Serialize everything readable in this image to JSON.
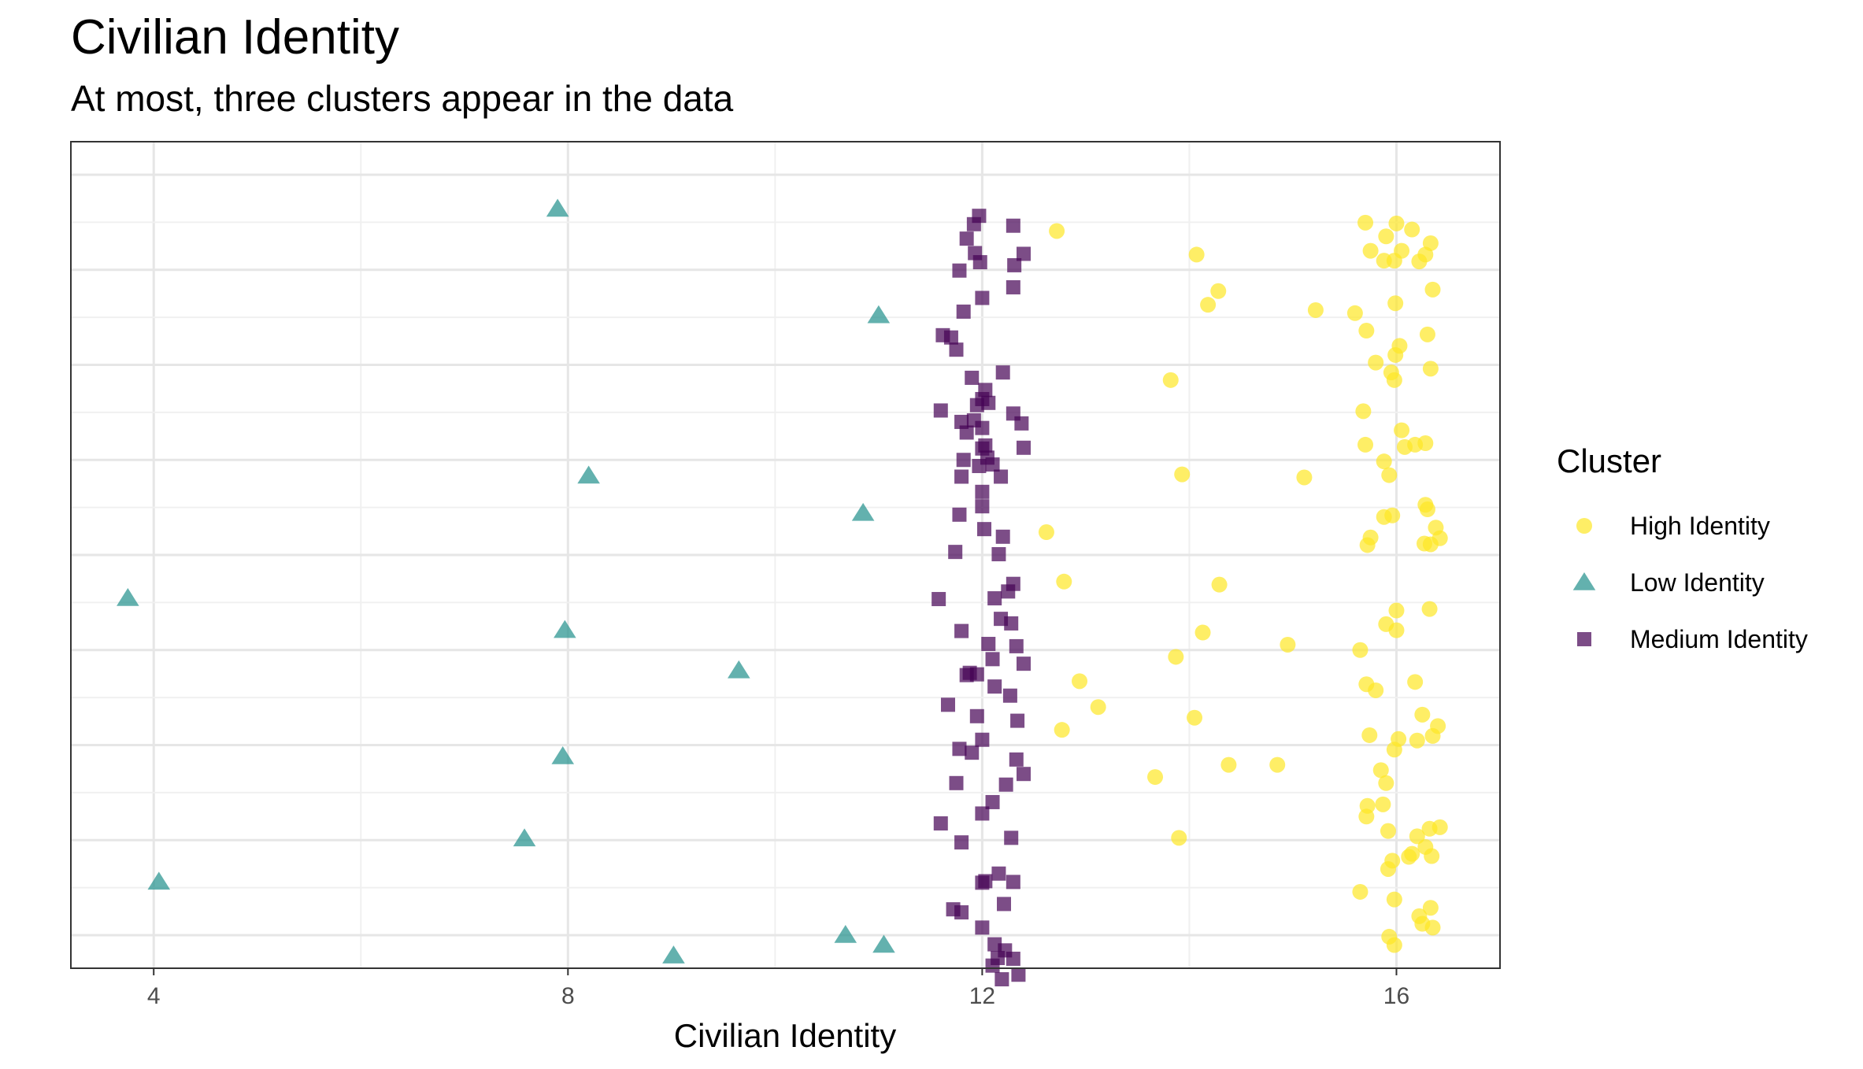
{
  "chart_data": {
    "type": "scatter",
    "title": "Civilian Identity",
    "subtitle": "At most, three clusters appear in the data",
    "xlabel": "Civilian Identity",
    "ylabel": "",
    "xlim": [
      3.2,
      17.0
    ],
    "x_ticks": [
      "4",
      "8",
      "12",
      "16"
    ],
    "grid": true,
    "legend_title": "Cluster",
    "legend_position": "right",
    "colors": {
      "High Identity": "#fde725",
      "Low Identity": "#21908c",
      "Medium Identity": "#440154"
    },
    "series": [
      {
        "name": "High Identity",
        "shape": "circle",
        "points": [
          [
            12.72,
            0.074
          ],
          [
            14.07,
            0.105
          ],
          [
            14.28,
            0.153
          ],
          [
            14.18,
            0.171
          ],
          [
            15.22,
            0.178
          ],
          [
            13.82,
            0.27
          ],
          [
            13.93,
            0.394
          ],
          [
            15.11,
            0.398
          ],
          [
            12.62,
            0.47
          ],
          [
            12.79,
            0.535
          ],
          [
            14.29,
            0.539
          ],
          [
            14.13,
            0.602
          ],
          [
            14.95,
            0.618
          ],
          [
            13.87,
            0.634
          ],
          [
            12.94,
            0.666
          ],
          [
            13.12,
            0.7
          ],
          [
            14.05,
            0.714
          ],
          [
            12.77,
            0.73
          ],
          [
            14.38,
            0.776
          ],
          [
            14.85,
            0.776
          ],
          [
            13.67,
            0.792
          ],
          [
            13.9,
            0.872
          ],
          [
            15.7,
            0.063
          ],
          [
            16.0,
            0.064
          ],
          [
            16.15,
            0.072
          ],
          [
            15.9,
            0.081
          ],
          [
            16.33,
            0.09
          ],
          [
            15.75,
            0.1
          ],
          [
            16.05,
            0.1
          ],
          [
            16.28,
            0.105
          ],
          [
            15.88,
            0.113
          ],
          [
            15.98,
            0.113
          ],
          [
            16.22,
            0.114
          ],
          [
            16.35,
            0.151
          ],
          [
            15.99,
            0.169
          ],
          [
            15.6,
            0.182
          ],
          [
            15.71,
            0.205
          ],
          [
            16.3,
            0.21
          ],
          [
            16.03,
            0.225
          ],
          [
            15.99,
            0.237
          ],
          [
            15.8,
            0.247
          ],
          [
            15.95,
            0.26
          ],
          [
            16.33,
            0.255
          ],
          [
            15.98,
            0.27
          ],
          [
            15.68,
            0.311
          ],
          [
            16.05,
            0.336
          ],
          [
            16.18,
            0.355
          ],
          [
            16.28,
            0.353
          ],
          [
            15.7,
            0.355
          ],
          [
            16.08,
            0.358
          ],
          [
            15.88,
            0.377
          ],
          [
            15.93,
            0.395
          ],
          [
            16.28,
            0.434
          ],
          [
            16.3,
            0.44
          ],
          [
            15.88,
            0.45
          ],
          [
            15.96,
            0.448
          ],
          [
            16.38,
            0.464
          ],
          [
            15.75,
            0.477
          ],
          [
            15.72,
            0.487
          ],
          [
            16.42,
            0.478
          ],
          [
            16.27,
            0.485
          ],
          [
            16.33,
            0.486
          ],
          [
            16.0,
            0.573
          ],
          [
            16.32,
            0.571
          ],
          [
            15.9,
            0.591
          ],
          [
            16.0,
            0.599
          ],
          [
            15.65,
            0.625
          ],
          [
            15.71,
            0.67
          ],
          [
            16.18,
            0.667
          ],
          [
            15.8,
            0.678
          ],
          [
            16.25,
            0.71
          ],
          [
            16.4,
            0.725
          ],
          [
            15.74,
            0.737
          ],
          [
            16.02,
            0.742
          ],
          [
            16.2,
            0.744
          ],
          [
            16.35,
            0.738
          ],
          [
            15.98,
            0.756
          ],
          [
            15.85,
            0.783
          ],
          [
            15.9,
            0.8
          ],
          [
            15.72,
            0.83
          ],
          [
            15.87,
            0.828
          ],
          [
            15.71,
            0.844
          ],
          [
            16.32,
            0.86
          ],
          [
            16.2,
            0.87
          ],
          [
            15.92,
            0.863
          ],
          [
            16.42,
            0.858
          ],
          [
            16.28,
            0.884
          ],
          [
            16.15,
            0.893
          ],
          [
            16.12,
            0.897
          ],
          [
            15.96,
            0.902
          ],
          [
            16.34,
            0.896
          ],
          [
            15.92,
            0.913
          ],
          [
            15.65,
            0.943
          ],
          [
            15.98,
            0.953
          ],
          [
            16.33,
            0.964
          ],
          [
            16.22,
            0.975
          ],
          [
            16.25,
            0.985
          ],
          [
            16.35,
            0.99
          ],
          [
            15.93,
            1.002
          ],
          [
            15.98,
            1.013
          ]
        ]
      },
      {
        "name": "Low Identity",
        "shape": "triangle",
        "points": [
          [
            7.9,
            0.045
          ],
          [
            11.0,
            0.185
          ],
          [
            8.2,
            0.396
          ],
          [
            10.85,
            0.445
          ],
          [
            3.75,
            0.557
          ],
          [
            7.97,
            0.599
          ],
          [
            9.65,
            0.652
          ],
          [
            7.95,
            0.765
          ],
          [
            7.58,
            0.873
          ],
          [
            4.05,
            0.93
          ],
          [
            10.68,
            1.0
          ],
          [
            11.05,
            1.013
          ],
          [
            9.02,
            1.027
          ]
        ]
      },
      {
        "name": "Medium Identity",
        "shape": "square",
        "points": [
          [
            11.97,
            0.054
          ],
          [
            11.92,
            0.065
          ],
          [
            12.3,
            0.067
          ],
          [
            11.85,
            0.084
          ],
          [
            11.93,
            0.103
          ],
          [
            12.4,
            0.104
          ],
          [
            11.98,
            0.115
          ],
          [
            12.31,
            0.119
          ],
          [
            11.78,
            0.126
          ],
          [
            12.3,
            0.148
          ],
          [
            12.0,
            0.162
          ],
          [
            11.82,
            0.18
          ],
          [
            11.62,
            0.211
          ],
          [
            11.7,
            0.214
          ],
          [
            11.75,
            0.23
          ],
          [
            12.2,
            0.26
          ],
          [
            11.9,
            0.267
          ],
          [
            12.03,
            0.283
          ],
          [
            12.0,
            0.295
          ],
          [
            12.06,
            0.3
          ],
          [
            11.95,
            0.303
          ],
          [
            11.6,
            0.31
          ],
          [
            12.3,
            0.314
          ],
          [
            11.92,
            0.323
          ],
          [
            11.8,
            0.325
          ],
          [
            12.38,
            0.327
          ],
          [
            12.0,
            0.333
          ],
          [
            11.85,
            0.339
          ],
          [
            12.03,
            0.356
          ],
          [
            12.4,
            0.359
          ],
          [
            12.0,
            0.36
          ],
          [
            12.05,
            0.372
          ],
          [
            11.82,
            0.375
          ],
          [
            12.1,
            0.381
          ],
          [
            11.97,
            0.383
          ],
          [
            12.18,
            0.397
          ],
          [
            11.8,
            0.397
          ],
          [
            12.0,
            0.417
          ],
          [
            12.0,
            0.436
          ],
          [
            11.78,
            0.447
          ],
          [
            12.02,
            0.466
          ],
          [
            12.2,
            0.476
          ],
          [
            11.74,
            0.496
          ],
          [
            12.16,
            0.499
          ],
          [
            12.3,
            0.538
          ],
          [
            12.25,
            0.548
          ],
          [
            12.12,
            0.557
          ],
          [
            11.58,
            0.558
          ],
          [
            12.18,
            0.584
          ],
          [
            12.28,
            0.59
          ],
          [
            11.8,
            0.6
          ],
          [
            12.06,
            0.617
          ],
          [
            12.33,
            0.62
          ],
          [
            12.1,
            0.637
          ],
          [
            12.4,
            0.643
          ],
          [
            11.88,
            0.655
          ],
          [
            11.95,
            0.657
          ],
          [
            11.85,
            0.658
          ],
          [
            12.12,
            0.673
          ],
          [
            12.27,
            0.685
          ],
          [
            11.67,
            0.697
          ],
          [
            11.95,
            0.712
          ],
          [
            12.34,
            0.718
          ],
          [
            12.0,
            0.743
          ],
          [
            11.78,
            0.755
          ],
          [
            11.9,
            0.76
          ],
          [
            12.33,
            0.769
          ],
          [
            12.4,
            0.788
          ],
          [
            11.75,
            0.8
          ],
          [
            12.23,
            0.802
          ],
          [
            12.1,
            0.825
          ],
          [
            12.0,
            0.84
          ],
          [
            11.6,
            0.853
          ],
          [
            12.28,
            0.872
          ],
          [
            11.8,
            0.878
          ],
          [
            12.16,
            0.919
          ],
          [
            12.03,
            0.929
          ],
          [
            12.0,
            0.931
          ],
          [
            12.3,
            0.93
          ],
          [
            12.21,
            0.959
          ],
          [
            11.72,
            0.966
          ],
          [
            11.8,
            0.97
          ],
          [
            12.0,
            0.99
          ],
          [
            12.12,
            1.012
          ],
          [
            12.22,
            1.02
          ],
          [
            12.15,
            1.03
          ],
          [
            12.3,
            1.031
          ],
          [
            12.1,
            1.04
          ],
          [
            12.35,
            1.052
          ],
          [
            12.19,
            1.058
          ]
        ]
      }
    ]
  }
}
